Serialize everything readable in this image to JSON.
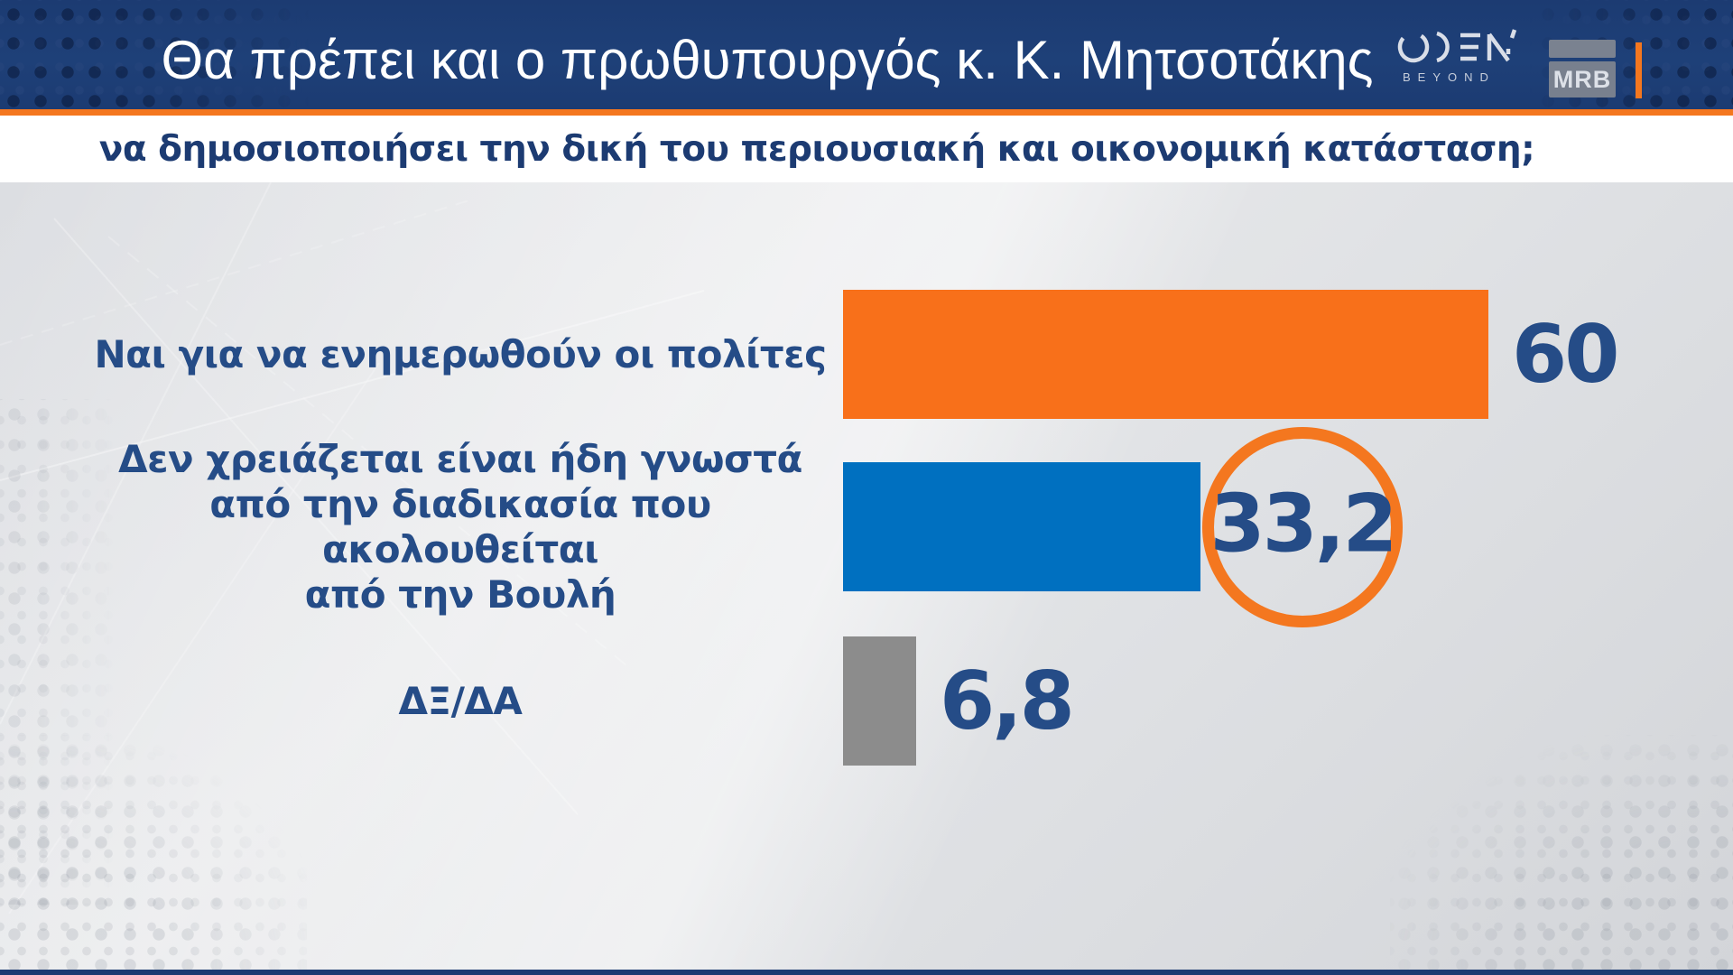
{
  "header": {
    "title": "Θα πρέπει και ο πρωθυπουργός κ. Κ. Μητσοτάκης",
    "open_logo": {
      "name": "OPEN",
      "tagline": "BEYOND"
    },
    "mrb_logo": "MRB"
  },
  "subtitle": "να δημοσιοποιήσει την δική του περιουσιακή και οικονομική κατάσταση;",
  "colors": {
    "navy": "#1C3B72",
    "orange": "#F4771F",
    "bar_orange": "#F8701A",
    "bar_blue": "#0070C0",
    "bar_gray": "#8C8C8C",
    "text_blue": "#254C87"
  },
  "chart_data": {
    "type": "bar",
    "orientation": "horizontal",
    "title": "Θα πρέπει και ο πρωθυπουργός κ. Κ. Μητσοτάκης να δημοσιοποιήσει την δική του περιουσιακή και οικονομική κατάσταση;",
    "categories": [
      "Ναι για να ενημερωθούν οι πολίτες",
      "Δεν χρειάζεται είναι ήδη γνωστά από την διαδικασία που ακολουθείται από την Βουλή",
      "ΔΞ/ΔΑ"
    ],
    "values": [
      60,
      33.2,
      6.8
    ],
    "xlim": [
      0,
      100
    ],
    "grid": false,
    "legend": false,
    "rows": [
      {
        "label_lines": [
          "Ναι για να ενημερωθούν οι πολίτες"
        ],
        "value": 60,
        "value_display": "60",
        "color": "#F8701A",
        "highlighted": false
      },
      {
        "label_lines": [
          "Δεν χρειάζεται είναι ήδη γνωστά",
          "από την διαδικασία που ακολουθείται",
          "από την Βουλή"
        ],
        "value": 33.2,
        "value_display": "33,2",
        "color": "#0070C0",
        "highlighted": true
      },
      {
        "label_lines": [
          "ΔΞ/ΔΑ"
        ],
        "value": 6.8,
        "value_display": "6,8",
        "color": "#8C8C8C",
        "highlighted": false
      }
    ]
  }
}
